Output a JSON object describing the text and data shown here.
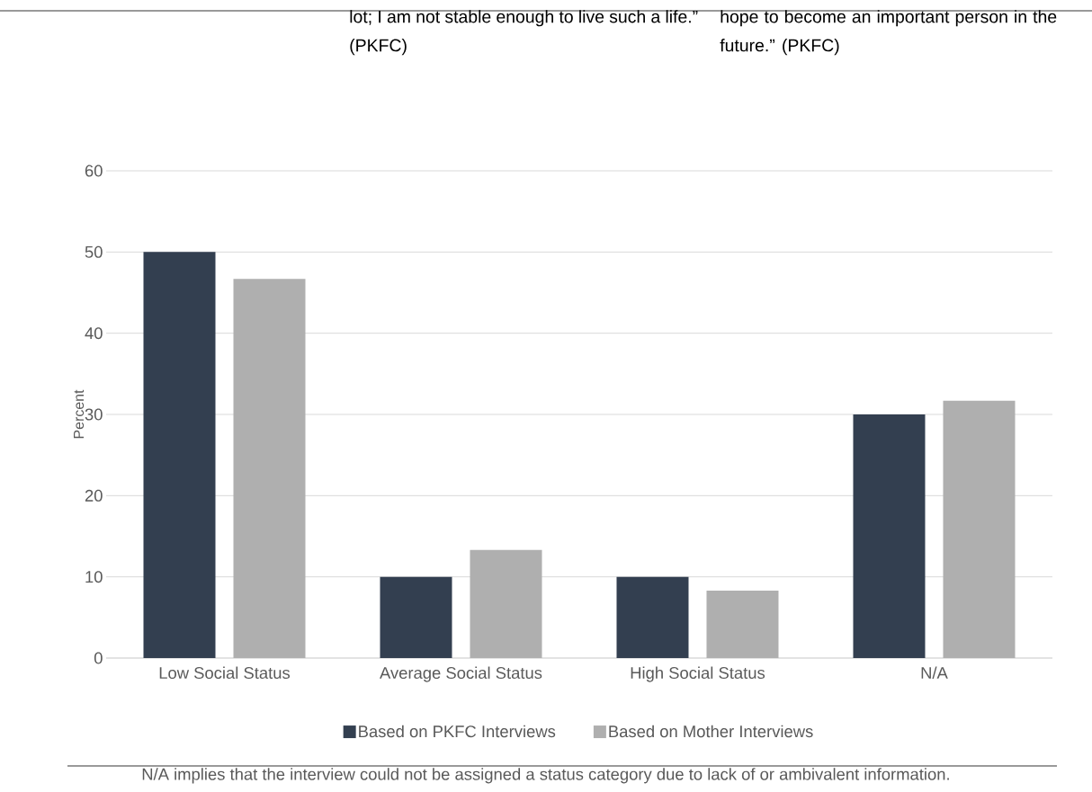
{
  "chart_data": {
    "type": "bar",
    "ylabel": "Percent",
    "categories": [
      "Low Social Status",
      "Average Social Status",
      "High Social Status",
      "N/A"
    ],
    "series": [
      {
        "name": "Based on PKFC Interviews",
        "color": "#333f50",
        "values": [
          50,
          10,
          10,
          30
        ]
      },
      {
        "name": "Based on Mother Interviews",
        "color": "#afafaf",
        "values": [
          46.7,
          13.3,
          8.3,
          31.7
        ]
      }
    ],
    "ylim": [
      0,
      60
    ],
    "yticks": [
      0,
      10,
      20,
      30,
      40,
      50,
      60
    ],
    "grid": "y",
    "legend": "bottom",
    "annotations": [
      "lot; I am not stable enough to live such a life.” (PKFC)",
      "hope to become an important person in the future.” (PKFC)",
      "N/A implies that the interview could not be assigned a status category due to lack of or ambivalent information."
    ]
  }
}
